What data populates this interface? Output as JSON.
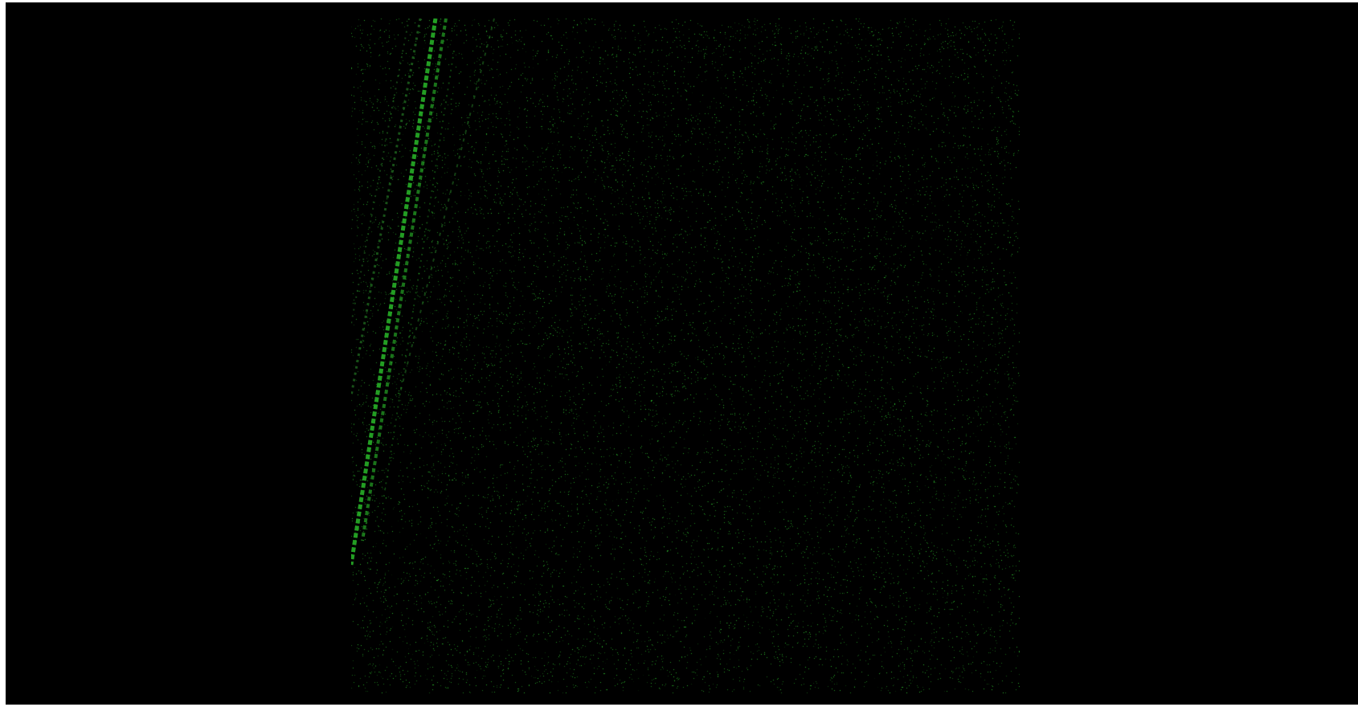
{
  "scene": {
    "description_kind": "green-speckle-noise-field",
    "background_color": "#000000",
    "frame_color": "#ffffff",
    "speckle_color": "#3aa83a",
    "streak_color": "#2fd12f"
  }
}
